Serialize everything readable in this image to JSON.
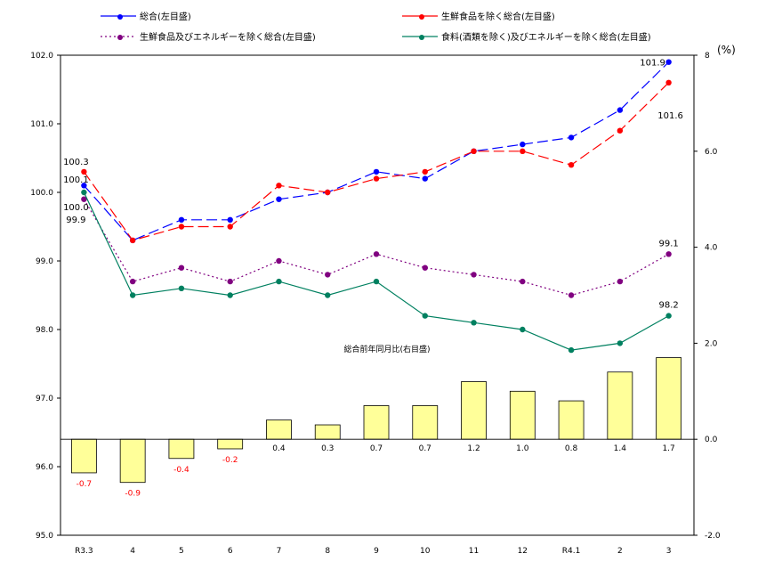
{
  "chart_data": {
    "type": "line+bar",
    "categories": [
      "R3.3",
      "4",
      "5",
      "6",
      "7",
      "8",
      "9",
      "10",
      "11",
      "12",
      "R4.1",
      "2",
      "3"
    ],
    "left_axis": {
      "min": 95.0,
      "max": 102.0,
      "step": 1.0,
      "ticks": [
        "95.0",
        "96.0",
        "97.0",
        "98.0",
        "99.0",
        "100.0",
        "101.0",
        "102.0"
      ]
    },
    "right_axis": {
      "min": -2.0,
      "max": 8.0,
      "step": 2.0,
      "ticks": [
        "-2.0",
        "0.0",
        "2.0",
        "4.0",
        "6.0",
        "8"
      ],
      "unit_label": "(%)"
    },
    "grid": false,
    "legend_position": "top",
    "series": [
      {
        "name": "総合(左目盛)",
        "color": "#0000ff",
        "style": "long-dash",
        "axis": "left",
        "values": [
          100.1,
          99.3,
          99.6,
          99.6,
          99.9,
          100.0,
          100.3,
          100.2,
          100.6,
          100.7,
          100.8,
          101.2,
          101.9
        ],
        "labels": {
          "first": "100.1",
          "last": "101.9"
        }
      },
      {
        "name": "生鮮食品を除く総合(左目盛)",
        "color": "#ff0000",
        "style": "long-dash",
        "axis": "left",
        "values": [
          100.3,
          99.3,
          99.5,
          99.5,
          100.1,
          100.0,
          100.2,
          100.3,
          100.6,
          100.6,
          100.4,
          100.9,
          101.6
        ],
        "labels": {
          "first": "100.3",
          "last": "101.6"
        }
      },
      {
        "name": "生鮮食品及びエネルギーを除く総合(左目盛)",
        "color": "#800080",
        "style": "dotted",
        "axis": "left",
        "values": [
          99.9,
          98.7,
          98.9,
          98.7,
          99.0,
          98.8,
          99.1,
          98.9,
          98.8,
          98.7,
          98.5,
          98.7,
          99.1
        ],
        "labels": {
          "first": "99.9",
          "last": "99.1"
        }
      },
      {
        "name": "食料(酒類を除く)及びエネルギーを除く総合(左目盛)",
        "color": "#008060",
        "style": "solid",
        "axis": "left",
        "values": [
          100.0,
          98.5,
          98.6,
          98.5,
          98.7,
          98.5,
          98.7,
          98.2,
          98.1,
          98.0,
          97.7,
          97.8,
          98.2
        ],
        "labels": {
          "first": "100.0",
          "last": "98.2"
        }
      }
    ],
    "bars": {
      "name": "総合前年同月比(右目盛)",
      "axis": "right",
      "color": "#ffff99",
      "negative_label_color": "#ff0000",
      "values": [
        -0.7,
        -0.9,
        -0.4,
        -0.2,
        0.4,
        0.3,
        0.7,
        0.7,
        1.2,
        1.0,
        0.8,
        1.4,
        1.7
      ],
      "labels": [
        "-0.7",
        "-0.9",
        "-0.4",
        "-0.2",
        "0.4",
        "0.3",
        "0.7",
        "0.7",
        "1.2",
        "1.0",
        "0.8",
        "1.4",
        "1.7"
      ]
    }
  }
}
